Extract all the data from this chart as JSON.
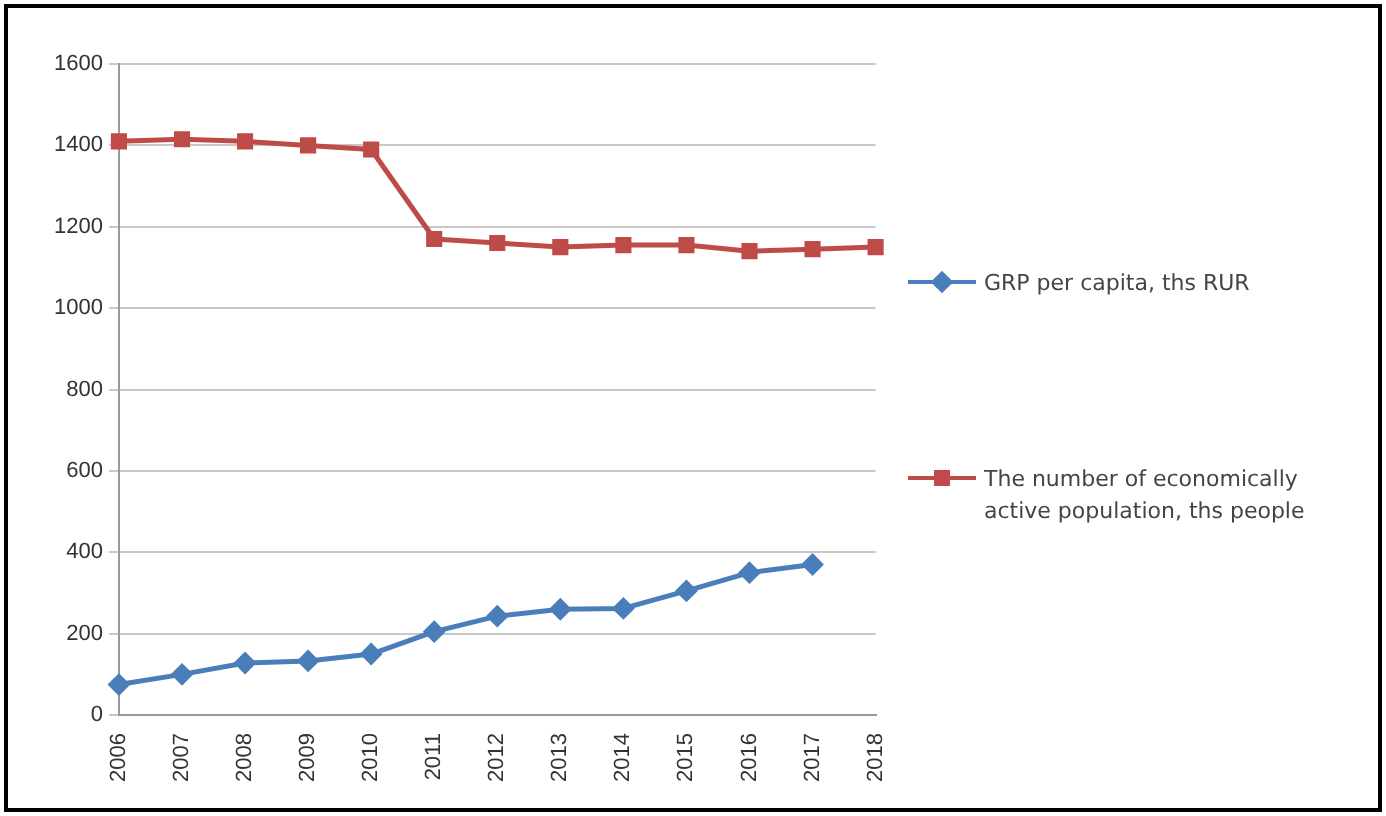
{
  "chart_data": {
    "type": "line",
    "categories": [
      "2006",
      "2007",
      "2008",
      "2009",
      "2010",
      "2011",
      "2012",
      "2013",
      "2014",
      "2015",
      "2016",
      "2017",
      "2018"
    ],
    "series": [
      {
        "name": "GRP per capita, ths RUR",
        "color": "#4a7ebb",
        "marker": "diamond",
        "values": [
          75,
          100,
          128,
          133,
          150,
          205,
          243,
          260,
          262,
          305,
          350,
          370,
          null
        ]
      },
      {
        "name": "The number of economically active population, ths people",
        "color": "#be4b48",
        "marker": "square",
        "values": [
          1410,
          1415,
          1410,
          1400,
          1390,
          1170,
          1160,
          1150,
          1155,
          1155,
          1140,
          1145,
          1150
        ]
      }
    ],
    "ylim": [
      0,
      1600
    ],
    "yticks": [
      0,
      200,
      400,
      600,
      800,
      1000,
      1200,
      1400,
      1600
    ],
    "grid": "y",
    "legend": "right",
    "line_style": "solid"
  }
}
